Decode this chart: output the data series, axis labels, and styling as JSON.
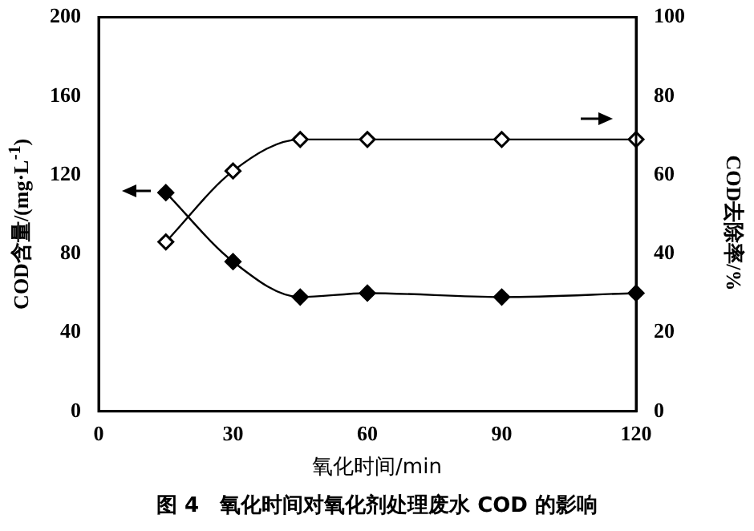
{
  "chart_data": {
    "type": "line",
    "title": "图 4　氧化时间对氧化剂处理废水 COD 的影响",
    "xlabel": "氧化时间/min",
    "ylabel": "COD含量/(mg·L$^{-1}$)",
    "y2label": "COD去除率/%",
    "x": [
      15,
      30,
      45,
      60,
      90,
      120
    ],
    "series": [
      {
        "color": "#000000",
        "values": [
          111,
          76,
          58,
          60,
          58,
          60
        ]
      },
      {
        "color": "#000000",
        "axis": "y2",
        "values": [
          43,
          61,
          69,
          69,
          69,
          69
        ]
      }
    ],
    "xlim": [
      0,
      120
    ],
    "xticks": [
      0,
      30,
      60,
      90,
      120
    ],
    "ylim": [
      0,
      200
    ],
    "yticks": [
      0,
      40,
      80,
      120,
      160,
      200
    ],
    "y2lim": [
      0,
      100
    ],
    "y2ticks": [
      0,
      20,
      40,
      60,
      80,
      100
    ],
    "grid": false,
    "legend": false,
    "marker": "diamond",
    "line_style": "solid"
  }
}
